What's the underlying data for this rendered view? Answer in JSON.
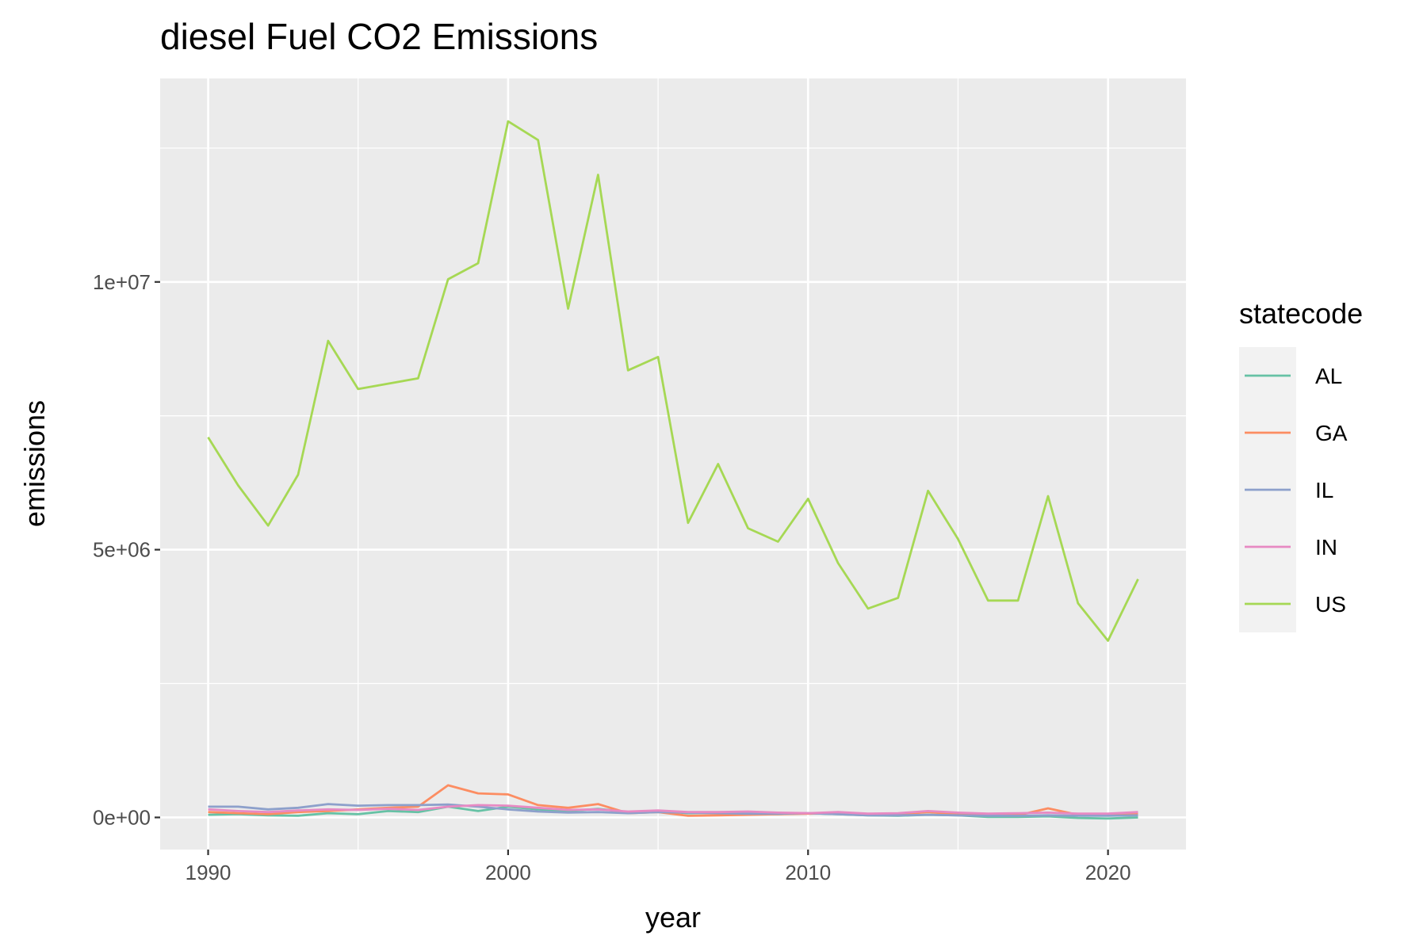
{
  "chart_data": {
    "type": "line",
    "title": "diesel Fuel CO2 Emissions",
    "xlabel": "year",
    "ylabel": "emissions",
    "xlim": [
      1988.4,
      2022.6
    ],
    "ylim": [
      -600000,
      13800000
    ],
    "x_ticks": [
      1990,
      2000,
      2010,
      2020
    ],
    "x_tick_labels": [
      "1990",
      "2000",
      "2010",
      "2020"
    ],
    "y_ticks": [
      0,
      5000000,
      10000000
    ],
    "y_tick_labels": [
      "0e+00",
      "5e+06",
      "1e+07"
    ],
    "grid": true,
    "legend": {
      "title": "statecode",
      "position": "right"
    },
    "x": [
      1990,
      1991,
      1992,
      1993,
      1994,
      1995,
      1996,
      1997,
      1998,
      1999,
      2000,
      2001,
      2002,
      2003,
      2004,
      2005,
      2006,
      2007,
      2008,
      2009,
      2010,
      2011,
      2012,
      2013,
      2014,
      2015,
      2016,
      2017,
      2018,
      2019,
      2020,
      2021
    ],
    "series": [
      {
        "name": "AL",
        "color": "#66c2a5",
        "values": [
          50000,
          60000,
          40000,
          30000,
          80000,
          60000,
          120000,
          100000,
          200000,
          120000,
          200000,
          150000,
          120000,
          160000,
          100000,
          120000,
          80000,
          90000,
          70000,
          60000,
          80000,
          60000,
          40000,
          30000,
          50000,
          40000,
          10000,
          10000,
          20000,
          -10000,
          -20000,
          0
        ]
      },
      {
        "name": "GA",
        "color": "#fc8d62",
        "values": [
          100000,
          80000,
          60000,
          100000,
          120000,
          150000,
          180000,
          200000,
          600000,
          450000,
          430000,
          230000,
          180000,
          250000,
          80000,
          100000,
          30000,
          40000,
          50000,
          60000,
          70000,
          80000,
          50000,
          60000,
          100000,
          60000,
          40000,
          40000,
          170000,
          50000,
          60000,
          80000
        ]
      },
      {
        "name": "IL",
        "color": "#8da0cb",
        "values": [
          200000,
          200000,
          150000,
          180000,
          250000,
          220000,
          230000,
          230000,
          240000,
          200000,
          150000,
          110000,
          90000,
          100000,
          80000,
          100000,
          90000,
          80000,
          70000,
          70000,
          80000,
          60000,
          40000,
          40000,
          50000,
          40000,
          30000,
          30000,
          40000,
          30000,
          30000,
          40000
        ]
      },
      {
        "name": "IN",
        "color": "#e78ac3",
        "values": [
          150000,
          120000,
          100000,
          130000,
          150000,
          140000,
          160000,
          140000,
          200000,
          230000,
          220000,
          180000,
          140000,
          150000,
          110000,
          130000,
          100000,
          100000,
          110000,
          90000,
          80000,
          100000,
          70000,
          80000,
          120000,
          90000,
          70000,
          80000,
          90000,
          70000,
          70000,
          100000
        ]
      },
      {
        "name": "US",
        "color": "#a6d854",
        "values": [
          7100000,
          6200000,
          5450000,
          6400000,
          8900000,
          8000000,
          8100000,
          8200000,
          10050000,
          10350000,
          13000000,
          12650000,
          9500000,
          12000000,
          8350000,
          8600000,
          5500000,
          6600000,
          5400000,
          5150000,
          5950000,
          4750000,
          3900000,
          4100000,
          6100000,
          5200000,
          4050000,
          4050000,
          6000000,
          4000000,
          3300000,
          4450000
        ]
      }
    ]
  }
}
